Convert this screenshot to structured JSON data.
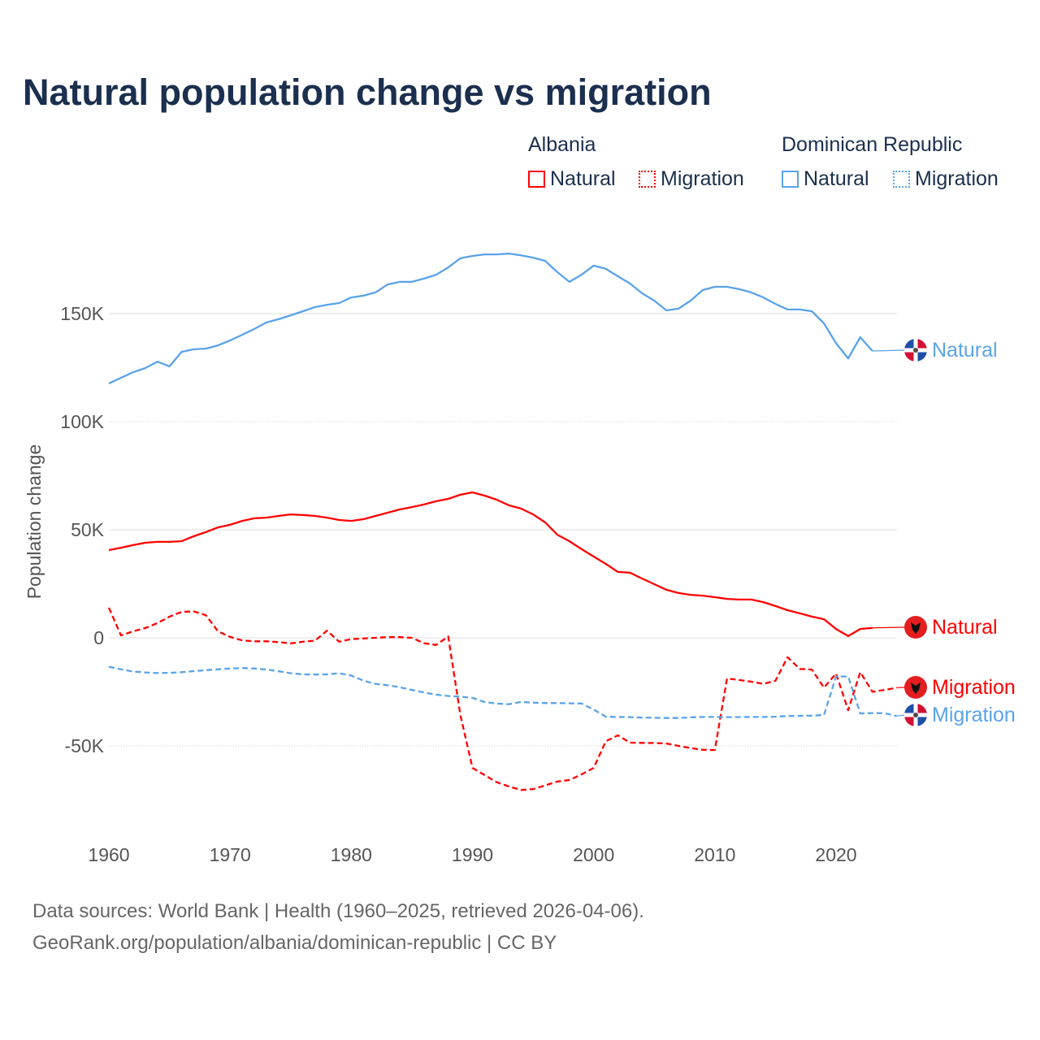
{
  "chart_data": {
    "type": "line",
    "title": "Natural population change vs migration",
    "ylabel": "Population change",
    "xlabel": "",
    "xlim": [
      1960,
      2025
    ],
    "ylim": [
      -80000,
      200000
    ],
    "x_ticks": [
      1960,
      1970,
      1980,
      1990,
      2000,
      2010,
      2020
    ],
    "y_ticks": [
      {
        "value": 150000,
        "label": "150K"
      },
      {
        "value": 100000,
        "label": "100K"
      },
      {
        "value": 50000,
        "label": "50K"
      },
      {
        "value": 0,
        "label": "0"
      },
      {
        "value": -50000,
        "label": "-50K"
      }
    ],
    "legend": {
      "placement": "top-right",
      "groups": [
        {
          "name": "Albania",
          "items": [
            "Natural",
            "Migration"
          ]
        },
        {
          "name": "Dominican Republic",
          "items": [
            "Natural",
            "Migration"
          ]
        }
      ]
    },
    "series": [
      {
        "name": "Albania Natural",
        "country": "Albania",
        "kind": "Natural",
        "color": "#ff0000",
        "dash": false,
        "end_label": "Natural",
        "start_year": 1960,
        "values": [
          40600,
          41700,
          42900,
          44000,
          44400,
          44400,
          44700,
          47000,
          48900,
          51100,
          52300,
          54100,
          55300,
          55600,
          56400,
          57100,
          56800,
          56400,
          55600,
          54500,
          54100,
          54900,
          56400,
          57900,
          59400,
          60500,
          61700,
          63200,
          64300,
          66200,
          67300,
          65800,
          63900,
          61300,
          59800,
          57100,
          53400,
          47700,
          44700,
          41000,
          37600,
          34200,
          30500,
          30100,
          27400,
          24800,
          22200,
          20700,
          19900,
          19500,
          18800,
          18000,
          17700,
          17700,
          16500,
          14700,
          12800,
          11300,
          9800,
          8600,
          4100,
          800,
          4100,
          4600
        ]
      },
      {
        "name": "Albania Migration",
        "country": "Albania",
        "kind": "Migration",
        "color": "#ff0000",
        "dash": true,
        "end_label": "Migration",
        "start_year": 1960,
        "values": [
          13900,
          1100,
          3000,
          4500,
          6800,
          9800,
          12000,
          12200,
          10500,
          3000,
          400,
          -1200,
          -1600,
          -1600,
          -2000,
          -2600,
          -1800,
          -1300,
          3300,
          -1800,
          -600,
          -300,
          0,
          300,
          300,
          0,
          -2500,
          -3300,
          600,
          -35700,
          -60200,
          -63500,
          -66800,
          -68800,
          -70400,
          -70000,
          -68300,
          -66500,
          -65800,
          -63200,
          -60200,
          -47900,
          -45100,
          -48500,
          -48600,
          -48700,
          -48900,
          -50000,
          -51000,
          -51800,
          -51900,
          -18800,
          -19500,
          -20300,
          -21300,
          -19900,
          -9000,
          -14400,
          -14700,
          -23100,
          -16500,
          -33500,
          -15900,
          -25000,
          -24100,
          -23100
        ]
      },
      {
        "name": "Dominican Republic Natural",
        "country": "Dominican Republic",
        "kind": "Natural",
        "color": "#5aa3e8",
        "dash": false,
        "end_label": "Natural",
        "start_year": 1960,
        "values": [
          117700,
          120300,
          122900,
          124800,
          127800,
          125600,
          132300,
          133500,
          133800,
          135300,
          137600,
          140200,
          142900,
          145900,
          147400,
          149200,
          151100,
          153000,
          154100,
          154900,
          157500,
          158300,
          159800,
          163500,
          164700,
          164700,
          166200,
          168000,
          171400,
          175600,
          176700,
          177400,
          177400,
          177800,
          177000,
          175900,
          174400,
          169200,
          164700,
          168000,
          172200,
          170700,
          167300,
          163900,
          159400,
          156000,
          151500,
          152300,
          156000,
          160900,
          162400,
          162400,
          161300,
          159800,
          157500,
          154500,
          151900,
          151900,
          151100,
          145500,
          136300,
          129300,
          139100,
          132700
        ]
      },
      {
        "name": "Dominican Republic Migration",
        "country": "Dominican Republic",
        "kind": "Migration",
        "color": "#5aa3e8",
        "dash": true,
        "end_label": "Migration",
        "start_year": 1960,
        "values": [
          -13400,
          -14600,
          -15600,
          -16000,
          -16300,
          -16200,
          -15900,
          -15400,
          -15000,
          -14600,
          -14200,
          -14000,
          -14200,
          -14700,
          -15500,
          -16400,
          -16900,
          -17000,
          -16900,
          -16400,
          -17500,
          -19800,
          -21300,
          -21900,
          -22900,
          -24100,
          -25300,
          -26300,
          -26900,
          -27200,
          -27800,
          -29700,
          -30400,
          -30700,
          -29700,
          -30000,
          -30200,
          -30200,
          -30300,
          -30400,
          -33200,
          -36500,
          -36600,
          -36700,
          -36900,
          -37000,
          -37100,
          -37100,
          -36800,
          -36600,
          -36600,
          -36700,
          -36700,
          -36600,
          -36600,
          -36500,
          -36200,
          -36100,
          -36000,
          -35700,
          -17900,
          -17900,
          -35000,
          -34800,
          -34900,
          -36200
        ]
      }
    ]
  },
  "footer": {
    "line1": "Data sources: World Bank | Health (1960–2025, retrieved 2026-04-06).",
    "line2": "GeoRank.org/population/albania/dominican-republic | CC BY"
  }
}
